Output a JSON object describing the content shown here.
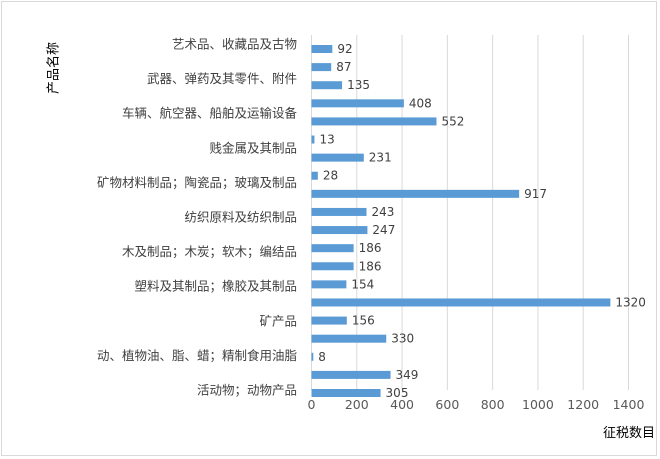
{
  "chart_data": {
    "type": "bar",
    "orientation": "horizontal",
    "xlabel": "征税数目",
    "ylabel": "产品名称",
    "xlim": [
      0,
      1400
    ],
    "xticks": [
      0,
      200,
      400,
      600,
      800,
      1000,
      1200,
      1400
    ],
    "grid": "vertical",
    "bar_color": "#5b9bd5",
    "category_labels": [
      "艺术品、收藏品及古物",
      "武器、弹药及其零件、附件",
      "车辆、航空器、船舶及运输设备",
      "贱金属及其制品",
      "矿物材料制品；陶瓷品；玻璃及制品",
      "纺织原料及纺织制品",
      "木及制品；木炭；软木；编结品",
      "塑料及其制品；橡胶及其制品",
      "矿产品",
      "动、植物油、脂、蜡；精制食用油脂",
      "活动物；动物产品"
    ],
    "values": [
      92,
      87,
      135,
      408,
      552,
      13,
      231,
      28,
      917,
      243,
      247,
      186,
      186,
      154,
      1320,
      156,
      330,
      8,
      349,
      305
    ]
  }
}
